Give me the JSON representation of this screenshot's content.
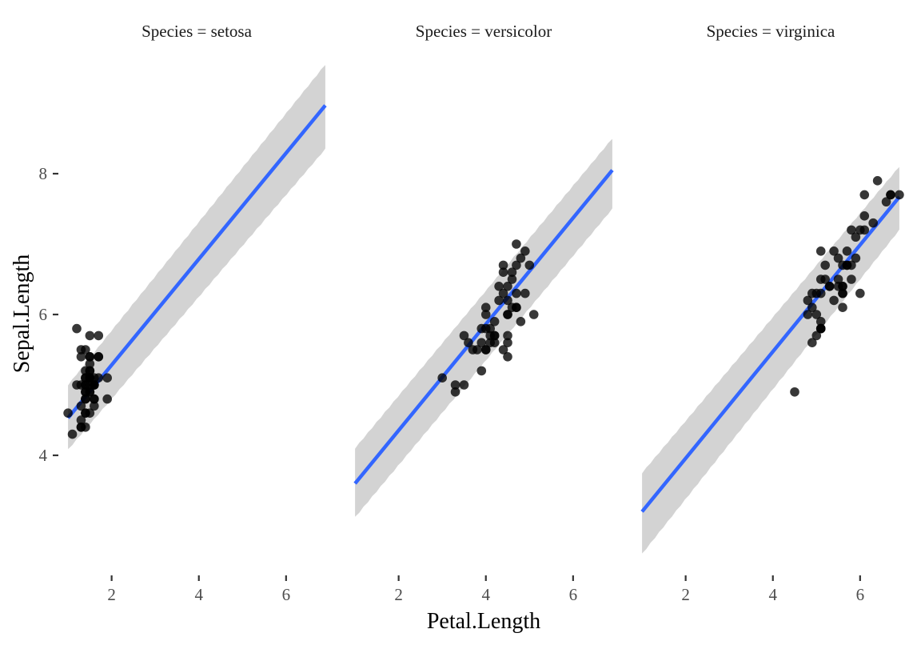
{
  "chart_data": {
    "type": "scatter",
    "facet_var": "Species",
    "xlabel": "Petal.Length",
    "ylabel": "Sepal.Length",
    "xlim": [
      0.98,
      6.92
    ],
    "ylim": [
      2.42,
      9.58
    ],
    "x_ticks": [
      2,
      4,
      6
    ],
    "y_ticks": [
      4,
      6,
      8
    ],
    "grid": false,
    "legend": "none",
    "colors": {
      "point": "#000000",
      "fit_line": "#3366FF",
      "ribbon": "#d3d3d3"
    },
    "panels": [
      {
        "strip": "Species = setosa",
        "fit": {
          "x": [
            1.0,
            6.9
          ],
          "y": [
            4.53,
            8.97
          ]
        },
        "band": {
          "x": [
            1.0,
            6.9
          ],
          "lower": [
            4.08,
            8.35
          ],
          "upper": [
            5.0,
            9.55
          ]
        },
        "points": [
          [
            1.4,
            5.1
          ],
          [
            1.4,
            4.9
          ],
          [
            1.3,
            4.7
          ],
          [
            1.5,
            4.6
          ],
          [
            1.4,
            5.0
          ],
          [
            1.7,
            5.4
          ],
          [
            1.4,
            4.6
          ],
          [
            1.5,
            5.0
          ],
          [
            1.4,
            4.4
          ],
          [
            1.5,
            4.9
          ],
          [
            1.5,
            5.4
          ],
          [
            1.6,
            4.8
          ],
          [
            1.4,
            4.8
          ],
          [
            1.1,
            4.3
          ],
          [
            1.2,
            5.8
          ],
          [
            1.5,
            5.7
          ],
          [
            1.3,
            5.4
          ],
          [
            1.4,
            5.1
          ],
          [
            1.7,
            5.7
          ],
          [
            1.5,
            5.1
          ],
          [
            1.7,
            5.4
          ],
          [
            1.5,
            5.1
          ],
          [
            1.0,
            4.6
          ],
          [
            1.7,
            5.1
          ],
          [
            1.9,
            4.8
          ],
          [
            1.6,
            5.0
          ],
          [
            1.6,
            5.0
          ],
          [
            1.5,
            5.2
          ],
          [
            1.4,
            5.2
          ],
          [
            1.6,
            4.7
          ],
          [
            1.6,
            4.8
          ],
          [
            1.5,
            5.4
          ],
          [
            1.5,
            5.2
          ],
          [
            1.4,
            5.5
          ],
          [
            1.5,
            4.9
          ],
          [
            1.2,
            5.0
          ],
          [
            1.3,
            5.5
          ],
          [
            1.4,
            4.9
          ],
          [
            1.3,
            4.4
          ],
          [
            1.5,
            5.1
          ],
          [
            1.3,
            5.0
          ],
          [
            1.3,
            4.5
          ],
          [
            1.3,
            4.4
          ],
          [
            1.6,
            5.0
          ],
          [
            1.9,
            5.1
          ],
          [
            1.4,
            4.8
          ],
          [
            1.6,
            5.1
          ],
          [
            1.4,
            4.6
          ],
          [
            1.5,
            5.3
          ],
          [
            1.4,
            5.0
          ]
        ]
      },
      {
        "strip": "Species = versicolor",
        "fit": {
          "x": [
            1.0,
            6.9
          ],
          "y": [
            3.6,
            8.05
          ]
        },
        "band": {
          "x": [
            1.0,
            6.9
          ],
          "lower": [
            3.12,
            7.5
          ],
          "upper": [
            4.1,
            8.5
          ]
        },
        "points": [
          [
            4.7,
            7.0
          ],
          [
            4.5,
            6.4
          ],
          [
            4.9,
            6.9
          ],
          [
            4.0,
            5.5
          ],
          [
            4.6,
            6.5
          ],
          [
            4.5,
            5.7
          ],
          [
            4.7,
            6.3
          ],
          [
            3.3,
            4.9
          ],
          [
            4.6,
            6.6
          ],
          [
            3.9,
            5.2
          ],
          [
            3.5,
            5.0
          ],
          [
            4.2,
            5.9
          ],
          [
            4.0,
            6.0
          ],
          [
            4.7,
            6.1
          ],
          [
            3.6,
            5.6
          ],
          [
            4.4,
            6.7
          ],
          [
            4.5,
            5.6
          ],
          [
            4.1,
            5.8
          ],
          [
            4.5,
            6.2
          ],
          [
            3.9,
            5.6
          ],
          [
            4.8,
            5.9
          ],
          [
            4.0,
            6.1
          ],
          [
            4.9,
            6.3
          ],
          [
            4.7,
            6.1
          ],
          [
            4.3,
            6.4
          ],
          [
            4.4,
            6.6
          ],
          [
            4.8,
            6.8
          ],
          [
            5.0,
            6.7
          ],
          [
            4.5,
            6.0
          ],
          [
            3.5,
            5.7
          ],
          [
            3.8,
            5.5
          ],
          [
            3.7,
            5.5
          ],
          [
            3.9,
            5.8
          ],
          [
            5.1,
            6.0
          ],
          [
            4.5,
            5.4
          ],
          [
            4.5,
            6.0
          ],
          [
            4.7,
            6.7
          ],
          [
            4.4,
            6.3
          ],
          [
            4.1,
            5.6
          ],
          [
            4.0,
            5.5
          ],
          [
            4.4,
            5.5
          ],
          [
            4.6,
            6.1
          ],
          [
            4.0,
            5.8
          ],
          [
            3.3,
            5.0
          ],
          [
            4.2,
            5.6
          ],
          [
            4.2,
            5.7
          ],
          [
            4.2,
            5.7
          ],
          [
            4.3,
            6.2
          ],
          [
            3.0,
            5.1
          ],
          [
            4.1,
            5.7
          ]
        ]
      },
      {
        "strip": "Species = virginica",
        "fit": {
          "x": [
            1.0,
            6.9
          ],
          "y": [
            3.2,
            7.67
          ]
        },
        "band": {
          "x": [
            1.0,
            6.9
          ],
          "lower": [
            2.6,
            7.2
          ],
          "upper": [
            3.75,
            8.1
          ]
        },
        "points": [
          [
            6.0,
            6.3
          ],
          [
            5.1,
            5.8
          ],
          [
            5.9,
            7.1
          ],
          [
            5.6,
            6.3
          ],
          [
            5.8,
            6.5
          ],
          [
            6.6,
            7.6
          ],
          [
            4.5,
            4.9
          ],
          [
            6.3,
            7.3
          ],
          [
            5.8,
            6.7
          ],
          [
            6.1,
            7.2
          ],
          [
            5.1,
            6.5
          ],
          [
            5.3,
            6.4
          ],
          [
            5.5,
            6.8
          ],
          [
            5.0,
            5.7
          ],
          [
            5.1,
            5.8
          ],
          [
            5.3,
            6.4
          ],
          [
            5.5,
            6.5
          ],
          [
            6.7,
            7.7
          ],
          [
            6.9,
            7.7
          ],
          [
            5.0,
            6.0
          ],
          [
            5.7,
            6.9
          ],
          [
            4.9,
            5.6
          ],
          [
            6.7,
            7.7
          ],
          [
            4.9,
            6.3
          ],
          [
            5.7,
            6.7
          ],
          [
            6.0,
            7.2
          ],
          [
            4.8,
            6.2
          ],
          [
            4.9,
            6.1
          ],
          [
            5.6,
            6.4
          ],
          [
            5.8,
            7.2
          ],
          [
            6.1,
            7.4
          ],
          [
            6.4,
            7.9
          ],
          [
            5.6,
            6.4
          ],
          [
            5.1,
            6.3
          ],
          [
            5.6,
            6.1
          ],
          [
            6.1,
            7.7
          ],
          [
            5.6,
            6.3
          ],
          [
            5.5,
            6.4
          ],
          [
            4.8,
            6.0
          ],
          [
            5.4,
            6.9
          ],
          [
            5.6,
            6.7
          ],
          [
            5.1,
            6.9
          ],
          [
            5.1,
            5.8
          ],
          [
            5.9,
            6.8
          ],
          [
            5.7,
            6.7
          ],
          [
            5.2,
            6.7
          ],
          [
            5.0,
            6.3
          ],
          [
            5.2,
            6.5
          ],
          [
            5.4,
            6.2
          ],
          [
            5.1,
            5.9
          ]
        ]
      }
    ]
  }
}
